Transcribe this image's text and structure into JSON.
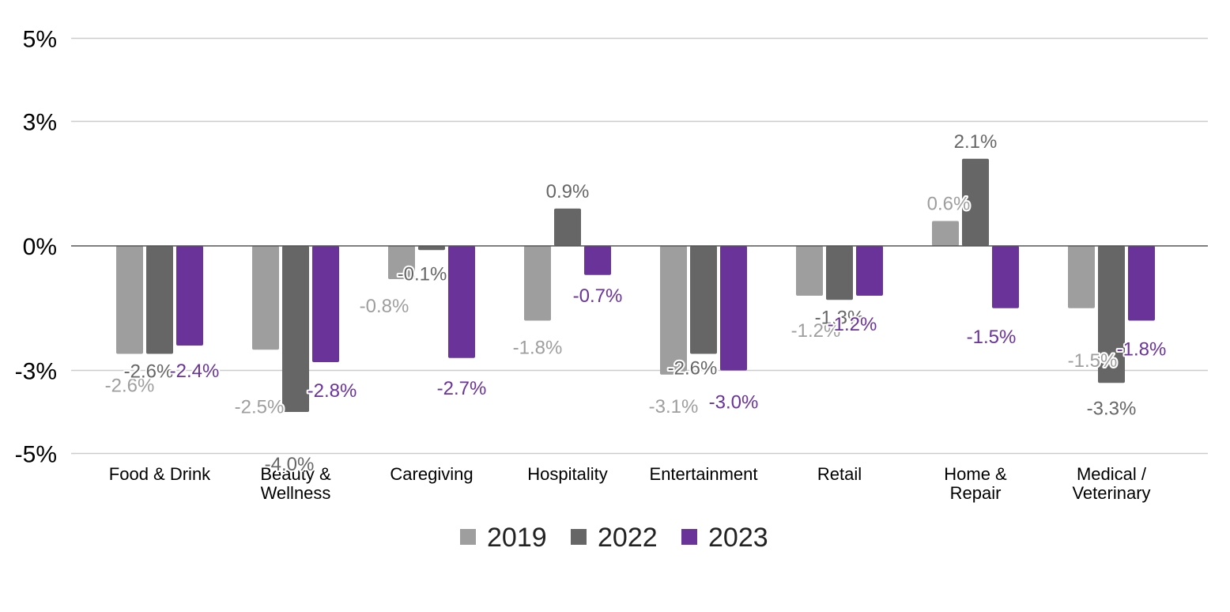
{
  "chart_data": {
    "type": "bar",
    "categories": [
      [
        "Food & Drink"
      ],
      [
        "Beauty &",
        "Wellness"
      ],
      [
        "Caregiving"
      ],
      [
        "Hospitality"
      ],
      [
        "Entertainment"
      ],
      [
        "Retail"
      ],
      [
        "Home &",
        "Repair"
      ],
      [
        "Medical /",
        "Veterinary"
      ]
    ],
    "series": [
      {
        "name": "2019",
        "color": "#9e9e9e",
        "values": [
          -2.6,
          -2.5,
          -0.8,
          -1.8,
          -3.1,
          -1.2,
          0.6,
          -1.5
        ],
        "labels": [
          "-2.6%",
          "-2.5%",
          "-0.8%",
          "-1.8%",
          "-3.1%",
          "-1.2%",
          "0.6%",
          "-1.5%"
        ]
      },
      {
        "name": "2022",
        "color": "#666666",
        "values": [
          -2.6,
          -4.0,
          -0.1,
          0.9,
          -2.6,
          -1.3,
          2.1,
          -3.3
        ],
        "labels": [
          "-2.6%",
          "-4.0%",
          "-0.1%",
          "0.9%",
          "-2.6%",
          "-1.3%",
          "2.1%",
          "-3.3%"
        ]
      },
      {
        "name": "2023",
        "color": "#6a3399",
        "values": [
          -2.4,
          -2.8,
          -2.7,
          -0.7,
          -3.0,
          -1.2,
          -1.5,
          -1.8
        ],
        "labels": [
          "-2.4%",
          "-2.8%",
          "-2.7%",
          "-0.7%",
          "-3.0%",
          "-1.2%",
          "-1.5%",
          "-1.8%"
        ]
      }
    ],
    "yticks": [
      5,
      3,
      0,
      -3,
      -5
    ],
    "ytick_labels": [
      "5%",
      "3%",
      "0%",
      "-3%",
      "-5%"
    ],
    "ylim": [
      -5,
      5
    ],
    "grid": true,
    "legend_position": "bottom-center"
  }
}
